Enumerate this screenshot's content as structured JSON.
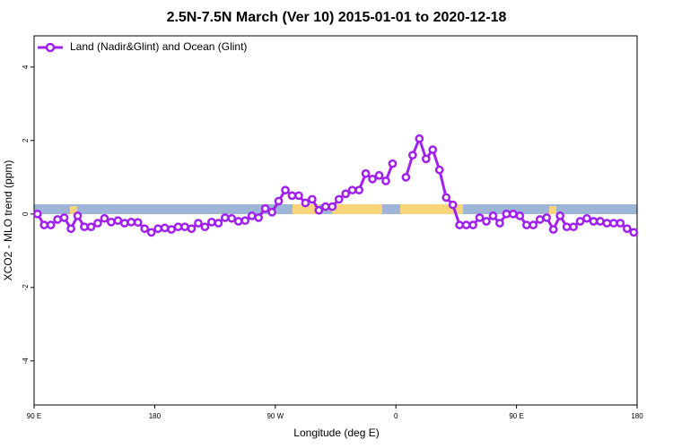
{
  "chart_data": {
    "type": "line",
    "title": "2.5N-7.5N March (Ver 10)   2015-01-01 to 2020-12-18",
    "x_label": "Longitude (deg E)",
    "y_label": "XCO2 - MLO trend (ppm)",
    "legend": "top-left",
    "xlim": [
      90,
      540
    ],
    "ylim": [
      -5.2,
      4.85
    ],
    "xticks": [
      {
        "value": 90,
        "label": "90 E"
      },
      {
        "value": 180,
        "label": "180"
      },
      {
        "value": 270,
        "label": "90 W"
      },
      {
        "value": 360,
        "label": "0"
      },
      {
        "value": 450,
        "label": "90 E"
      },
      {
        "value": 540,
        "label": "180"
      }
    ],
    "yticks": [
      -4,
      -2,
      0,
      2,
      4
    ],
    "x": [
      92.5,
      97.5,
      102.5,
      107.5,
      112.5,
      117.5,
      122.5,
      127.5,
      132.5,
      137.5,
      142.5,
      147.5,
      152.5,
      157.5,
      162.5,
      167.5,
      172.5,
      177.5,
      182.5,
      187.5,
      192.5,
      197.5,
      202.5,
      207.5,
      212.5,
      217.5,
      222.5,
      227.5,
      232.5,
      237.5,
      242.5,
      247.5,
      252.5,
      257.5,
      262.5,
      267.5,
      272.5,
      277.5,
      282.5,
      287.5,
      292.5,
      297.5,
      302.5,
      307.5,
      312.5,
      317.5,
      322.5,
      327.5,
      332.5,
      337.5,
      342.5,
      347.5,
      352.5,
      357.5,
      362.5,
      367.5,
      372.5,
      377.5,
      382.5,
      387.5,
      392.5,
      397.5,
      402.5,
      407.5,
      412.5,
      417.5,
      422.5,
      427.5,
      432.5,
      437.5,
      442.5,
      447.5,
      452.5,
      457.5,
      462.5,
      467.5,
      472.5,
      477.5,
      482.5,
      487.5,
      492.5,
      497.5,
      502.5,
      507.5,
      512.5,
      517.5,
      522.5,
      527.5,
      532.5,
      537.5
    ],
    "series": [
      {
        "name": "Land (Nadir&Glint) and Ocean (Glint)",
        "color": "#a020f0",
        "values": [
          0.0,
          -0.3,
          -0.3,
          -0.15,
          -0.1,
          -0.4,
          -0.05,
          -0.35,
          -0.35,
          -0.25,
          -0.12,
          -0.22,
          -0.18,
          -0.25,
          -0.22,
          -0.23,
          -0.4,
          -0.5,
          -0.4,
          -0.38,
          -0.42,
          -0.35,
          -0.35,
          -0.4,
          -0.25,
          -0.35,
          -0.22,
          -0.25,
          -0.1,
          -0.12,
          -0.2,
          -0.18,
          -0.05,
          -0.1,
          0.15,
          0.05,
          0.35,
          0.65,
          0.5,
          0.5,
          0.3,
          0.4,
          0.1,
          0.2,
          0.2,
          0.4,
          0.55,
          0.65,
          0.65,
          1.1,
          0.95,
          1.05,
          0.9,
          1.37,
          null,
          1.0,
          1.6,
          2.05,
          1.5,
          1.75,
          1.2,
          0.45,
          0.25,
          -0.3,
          -0.3,
          -0.3,
          -0.1,
          -0.2,
          -0.05,
          -0.25,
          0.0,
          0.0,
          -0.05,
          -0.3,
          -0.3,
          -0.15,
          -0.1,
          -0.42,
          -0.05,
          -0.35,
          -0.35,
          -0.2,
          -0.12,
          -0.2,
          -0.2,
          -0.25,
          -0.25,
          -0.25,
          -0.4,
          -0.5
        ]
      }
    ]
  }
}
